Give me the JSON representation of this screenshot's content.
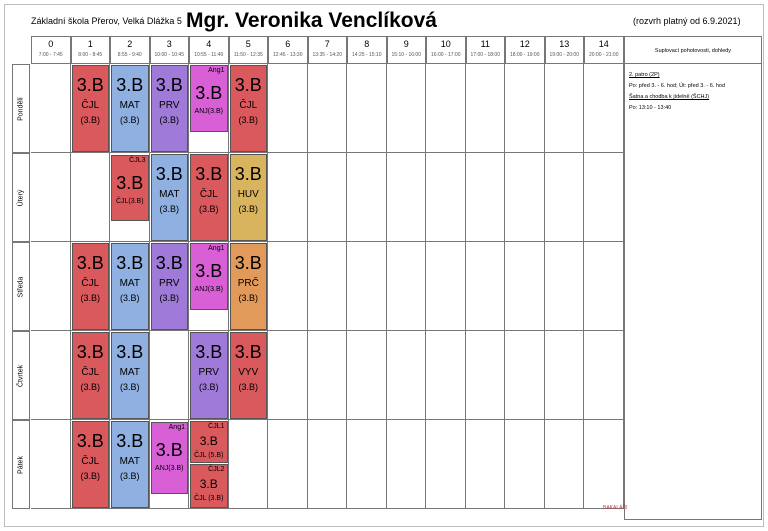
{
  "header": {
    "school": "Základní škola Přerov, Velká Dlážka 5",
    "teacher": "Mgr. Veronika Venclíková",
    "validity": "(rozvrh platný od 6.9.2021)"
  },
  "periods": [
    {
      "num": "0",
      "time": "7:00 - 7:45"
    },
    {
      "num": "1",
      "time": "8:00 - 8:45"
    },
    {
      "num": "2",
      "time": "8:55 - 9:40"
    },
    {
      "num": "3",
      "time": "10:00 - 10:45"
    },
    {
      "num": "4",
      "time": "10:55 - 11:40"
    },
    {
      "num": "5",
      "time": "11:50 - 12:35"
    },
    {
      "num": "6",
      "time": "12:45 - 13:30"
    },
    {
      "num": "7",
      "time": "13:35 - 14:20"
    },
    {
      "num": "8",
      "time": "14:25 - 15:10"
    },
    {
      "num": "9",
      "time": "15:10 - 16:00"
    },
    {
      "num": "10",
      "time": "16:00 - 17:00"
    },
    {
      "num": "11",
      "time": "17:00 - 18:00"
    },
    {
      "num": "12",
      "time": "18:00 - 19:00"
    },
    {
      "num": "13",
      "time": "19:00 - 20:00"
    },
    {
      "num": "14",
      "time": "20:00 - 21:00"
    }
  ],
  "right_header": "Suplovací pohotovosti, dohledy",
  "days": [
    "Pondělí",
    "Úterý",
    "Středa",
    "Čtvrtek",
    "Pátek"
  ],
  "notes": {
    "line1": "2. patro (2P)",
    "line2": "Po: před 3. - 6. hod; Út: před 3. - 6. hod",
    "line3": "Šatna a chodba k jídelně (ŠCHJ)",
    "line4": "Po: 13:10 - 13:40"
  },
  "lessons": {
    "mon": [
      {
        "big": "3.B",
        "subj": "ČJL",
        "grp": "(3.B)",
        "color": "#d9595d"
      },
      {
        "big": "3.B",
        "subj": "MAT",
        "grp": "(3.B)",
        "color": "#8fb0e0"
      },
      {
        "big": "3.B",
        "subj": "PRV",
        "grp": "(3.B)",
        "color": "#a07ad9"
      },
      {
        "big": "3.B",
        "subj": "ANJ(3.B)",
        "grp": "",
        "tag": "Ang1",
        "color": "#d85fd6"
      },
      {
        "big": "3.B",
        "subj": "ČJL",
        "grp": "(3.B)",
        "color": "#d9595d"
      }
    ],
    "tue": [
      {
        "big": "3.B",
        "subj": "ČJL(3.B)",
        "grp": "",
        "tag": "ČJL3",
        "color": "#d9595d"
      },
      {
        "big": "3.B",
        "subj": "MAT",
        "grp": "(3.B)",
        "color": "#8fb0e0"
      },
      {
        "big": "3.B",
        "subj": "ČJL",
        "grp": "(3.B)",
        "color": "#d9595d"
      },
      {
        "big": "3.B",
        "subj": "HUV",
        "grp": "(3.B)",
        "color": "#d9b45e"
      }
    ],
    "wed": [
      {
        "big": "3.B",
        "subj": "ČJL",
        "grp": "(3.B)",
        "color": "#d9595d"
      },
      {
        "big": "3.B",
        "subj": "MAT",
        "grp": "(3.B)",
        "color": "#8fb0e0"
      },
      {
        "big": "3.B",
        "subj": "PRV",
        "grp": "(3.B)",
        "color": "#a07ad9"
      },
      {
        "big": "3.B",
        "subj": "ANJ(3.B)",
        "grp": "",
        "tag": "Ang1",
        "color": "#d85fd6"
      },
      {
        "big": "3.B",
        "subj": "PRČ",
        "grp": "(3.B)",
        "color": "#e29a5b"
      }
    ],
    "thu": [
      {
        "big": "3.B",
        "subj": "ČJL",
        "grp": "(3.B)",
        "color": "#d9595d"
      },
      {
        "big": "3.B",
        "subj": "MAT",
        "grp": "(3.B)",
        "color": "#8fb0e0"
      },
      {
        "big": "3.B",
        "subj": "PRV",
        "grp": "(3.B)",
        "color": "#a07ad9"
      },
      {
        "big": "3.B",
        "subj": "VYV",
        "grp": "(3.B)",
        "color": "#d9595d"
      }
    ],
    "fri": [
      {
        "big": "3.B",
        "subj": "ČJL",
        "grp": "(3.B)",
        "color": "#d9595d"
      },
      {
        "big": "3.B",
        "subj": "MAT",
        "grp": "(3.B)",
        "color": "#8fb0e0"
      },
      {
        "big": "3.B",
        "subj": "ANJ(3.B)",
        "grp": "",
        "tag": "Ang1",
        "color": "#d85fd6"
      },
      {
        "big": "3.B",
        "subj": "ČJL (5.B)",
        "grp": "",
        "tag": "ČJL1",
        "color": "#d9595d"
      },
      {
        "big": "3.B",
        "subj": "ČJL (3.B)",
        "grp": "",
        "tag": "ČJL2",
        "color": "#d9595d"
      }
    ]
  },
  "footer": "BAKALÁŘI"
}
